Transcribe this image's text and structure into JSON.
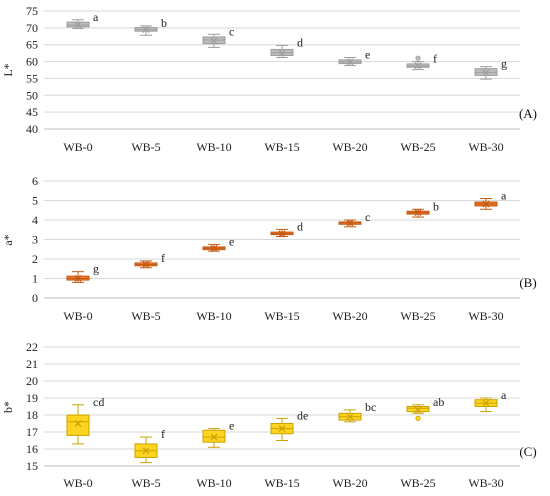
{
  "chart_data": [
    {
      "type": "box",
      "panel_label": "(A)",
      "ylabel": "L*",
      "ylim": [
        40,
        75
      ],
      "yticks": [
        40,
        45,
        50,
        55,
        60,
        65,
        70,
        75
      ],
      "grid": true,
      "box_color": "#bdbdbd",
      "edge_color": "#9e9e9e",
      "categories": [
        "WB-0",
        "WB-5",
        "WB-10",
        "WB-15",
        "WB-20",
        "WB-25",
        "WB-30"
      ],
      "boxes": [
        {
          "min": 69.8,
          "q1": 70.3,
          "median": 70.8,
          "mean": 70.9,
          "q3": 71.7,
          "max": 72.4,
          "letter": "a"
        },
        {
          "min": 67.8,
          "q1": 69.0,
          "median": 69.5,
          "mean": 69.5,
          "q3": 70.1,
          "max": 70.6,
          "letter": "b"
        },
        {
          "min": 64.2,
          "q1": 65.3,
          "median": 66.4,
          "mean": 66.2,
          "q3": 67.3,
          "max": 68.1,
          "letter": "c"
        },
        {
          "min": 61.2,
          "q1": 61.8,
          "median": 62.6,
          "mean": 62.5,
          "q3": 63.6,
          "max": 64.8,
          "letter": "d"
        },
        {
          "min": 58.8,
          "q1": 59.4,
          "median": 59.9,
          "mean": 59.9,
          "q3": 60.5,
          "max": 61.2,
          "letter": "e"
        },
        {
          "min": 57.6,
          "q1": 58.3,
          "median": 58.7,
          "mean": 58.8,
          "q3": 59.3,
          "max": 60.0,
          "outliers": [
            61.0
          ],
          "letter": "f"
        },
        {
          "min": 54.8,
          "q1": 55.9,
          "median": 56.8,
          "mean": 56.7,
          "q3": 57.9,
          "max": 58.5,
          "letter": "g"
        }
      ]
    },
    {
      "type": "box",
      "panel_label": "(B)",
      "ylabel": "a*",
      "ylim": [
        0,
        6
      ],
      "yticks": [
        0,
        1,
        2,
        3,
        4,
        5,
        6
      ],
      "grid": true,
      "box_color": "#ed7d31",
      "edge_color": "#c55a11",
      "categories": [
        "WB-0",
        "WB-5",
        "WB-10",
        "WB-15",
        "WB-20",
        "WB-25",
        "WB-30"
      ],
      "boxes": [
        {
          "min": 0.8,
          "q1": 0.92,
          "median": 1.0,
          "mean": 1.0,
          "q3": 1.12,
          "max": 1.35,
          "letter": "g"
        },
        {
          "min": 1.55,
          "q1": 1.65,
          "median": 1.72,
          "mean": 1.72,
          "q3": 1.8,
          "max": 1.9,
          "letter": "f"
        },
        {
          "min": 2.4,
          "q1": 2.48,
          "median": 2.55,
          "mean": 2.55,
          "q3": 2.62,
          "max": 2.75,
          "letter": "e"
        },
        {
          "min": 3.15,
          "q1": 3.25,
          "median": 3.3,
          "mean": 3.3,
          "q3": 3.38,
          "max": 3.52,
          "letter": "d"
        },
        {
          "min": 3.65,
          "q1": 3.78,
          "median": 3.85,
          "mean": 3.85,
          "q3": 3.9,
          "max": 4.0,
          "letter": "c"
        },
        {
          "min": 4.15,
          "q1": 4.3,
          "median": 4.38,
          "mean": 4.38,
          "q3": 4.45,
          "max": 4.55,
          "letter": "b"
        },
        {
          "min": 4.55,
          "q1": 4.72,
          "median": 4.82,
          "mean": 4.82,
          "q3": 4.92,
          "max": 5.1,
          "letter": "a"
        }
      ]
    },
    {
      "type": "box",
      "panel_label": "(C)",
      "ylabel": "b*",
      "ylim": [
        15,
        22
      ],
      "yticks": [
        15,
        16,
        17,
        18,
        19,
        20,
        21,
        22
      ],
      "grid": true,
      "box_color": "#ffd320",
      "edge_color": "#c9a400",
      "categories": [
        "WB-0",
        "WB-5",
        "WB-10",
        "WB-15",
        "WB-20",
        "WB-25",
        "WB-30"
      ],
      "boxes": [
        {
          "min": 16.3,
          "q1": 16.8,
          "median": 17.6,
          "mean": 17.5,
          "q3": 18.0,
          "max": 18.6,
          "letter": "cd"
        },
        {
          "min": 15.2,
          "q1": 15.5,
          "median": 15.9,
          "mean": 15.9,
          "q3": 16.3,
          "max": 16.7,
          "letter": "f"
        },
        {
          "min": 16.1,
          "q1": 16.4,
          "median": 16.7,
          "mean": 16.7,
          "q3": 17.1,
          "max": 17.2,
          "letter": "e"
        },
        {
          "min": 16.5,
          "q1": 16.9,
          "median": 17.2,
          "mean": 17.2,
          "q3": 17.5,
          "max": 17.8,
          "letter": "de"
        },
        {
          "min": 17.6,
          "q1": 17.7,
          "median": 17.9,
          "mean": 17.9,
          "q3": 18.1,
          "max": 18.3,
          "letter": "bc"
        },
        {
          "min": 18.1,
          "q1": 18.2,
          "median": 18.4,
          "mean": 18.3,
          "q3": 18.5,
          "max": 18.6,
          "outliers": [
            17.8
          ],
          "letter": "ab"
        },
        {
          "min": 18.2,
          "q1": 18.5,
          "median": 18.7,
          "mean": 18.7,
          "q3": 18.9,
          "max": 19.0,
          "letter": "a"
        }
      ]
    }
  ]
}
